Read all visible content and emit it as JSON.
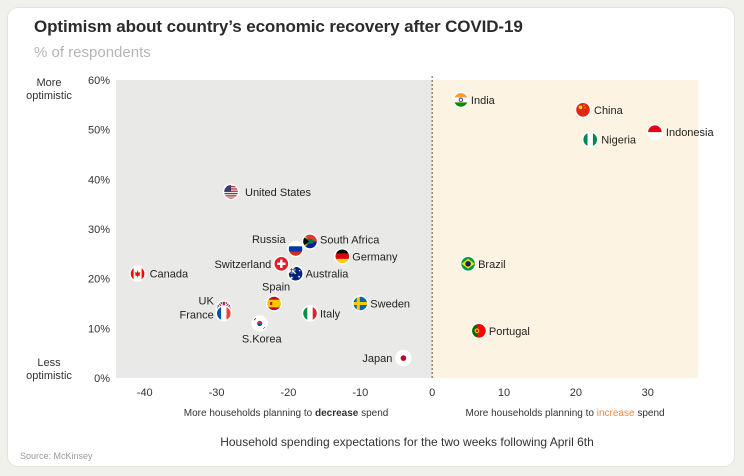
{
  "header": {
    "title": "Optimism about country’s economic recovery after COVID-19",
    "subtitle": "% of respondents"
  },
  "y_side_labels": {
    "top": "More optimistic",
    "bottom": "Less optimistic"
  },
  "footer": {
    "source": "Source: McKinsey"
  },
  "colors": {
    "decrease_region": "#e9e9e7",
    "increase_region": "#fcf3e3",
    "increase_accent": "#e8874a",
    "divider": "#555555"
  },
  "chart_data": {
    "type": "scatter",
    "title": "Optimism about country’s economic recovery after COVID-19",
    "subtitle": "% of respondents",
    "xlabel": "Household spending expectations for the two weeks following April 6th",
    "ylabel": "% of respondents",
    "xlim": [
      -44,
      37
    ],
    "ylim": [
      0,
      60
    ],
    "x_ticks": [
      -40,
      -30,
      -20,
      -10,
      0,
      10,
      20,
      30
    ],
    "y_ticks": [
      "0%",
      "10%",
      "20%",
      "30%",
      "40%",
      "50%",
      "60%"
    ],
    "regions": {
      "left": {
        "prefix": "More households planning to ",
        "emphasis": "decrease",
        "suffix": " spend"
      },
      "right": {
        "prefix": "More households planning to ",
        "emphasis": "increase",
        "suffix": " spend"
      }
    },
    "points": [
      {
        "label": "India",
        "x": 4,
        "y": 56,
        "flag": "india"
      },
      {
        "label": "China",
        "x": 21,
        "y": 54,
        "flag": "china"
      },
      {
        "label": "Nigeria",
        "x": 22,
        "y": 48,
        "flag": "nigeria"
      },
      {
        "label": "Indonesia",
        "x": 31,
        "y": 49.5,
        "flag": "indonesia"
      },
      {
        "label": "United States",
        "x": -28,
        "y": 37.5,
        "flag": "usa"
      },
      {
        "label": "Russia",
        "x": -19,
        "y": 26,
        "flag": "russia"
      },
      {
        "label": "South Africa",
        "x": -17,
        "y": 27.5,
        "flag": "south-africa"
      },
      {
        "label": "Germany",
        "x": -12.5,
        "y": 24.5,
        "flag": "germany"
      },
      {
        "label": "Switzerland",
        "x": -21,
        "y": 23,
        "flag": "switzerland"
      },
      {
        "label": "Australia",
        "x": -19,
        "y": 21,
        "flag": "australia"
      },
      {
        "label": "Canada",
        "x": -41,
        "y": 21,
        "flag": "canada"
      },
      {
        "label": "Spain",
        "x": -22,
        "y": 15,
        "flag": "spain"
      },
      {
        "label": "UK",
        "x": -29,
        "y": 14,
        "flag": "uk"
      },
      {
        "label": "France",
        "x": -29,
        "y": 13,
        "flag": "france"
      },
      {
        "label": "Italy",
        "x": -17,
        "y": 13,
        "flag": "italy"
      },
      {
        "label": "Sweden",
        "x": -10,
        "y": 15,
        "flag": "sweden"
      },
      {
        "label": "S.Korea",
        "x": -24,
        "y": 11,
        "flag": "south-korea"
      },
      {
        "label": "Brazil",
        "x": 5,
        "y": 23,
        "flag": "brazil"
      },
      {
        "label": "Portugal",
        "x": 6.5,
        "y": 9.5,
        "flag": "portugal"
      },
      {
        "label": "Japan",
        "x": -4,
        "y": 4,
        "flag": "japan"
      }
    ]
  }
}
